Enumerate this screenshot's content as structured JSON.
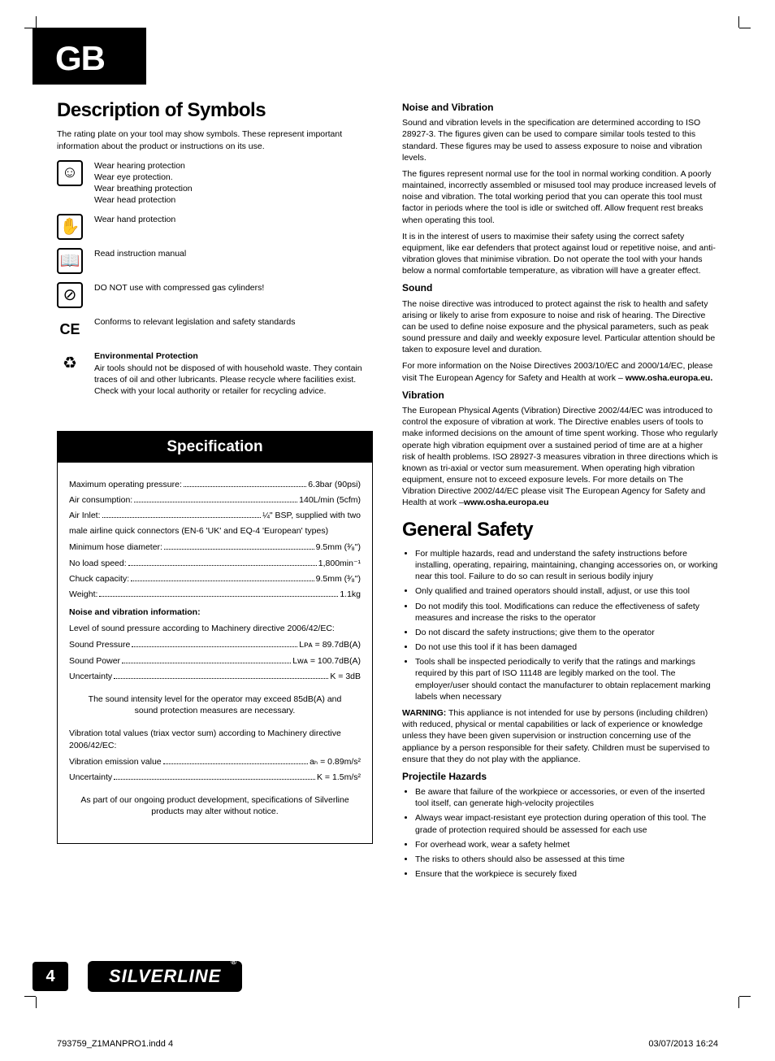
{
  "tab": "GB",
  "page_number": "4",
  "brand_logo_text": "SILVERLINE",
  "file_footer_left": "793759_Z1MANPRO1.indd   4",
  "file_footer_right": "03/07/2013   16:24",
  "colors": {
    "text": "#000000",
    "background": "#ffffff",
    "block_bg": "#000000",
    "block_fg": "#ffffff"
  },
  "left": {
    "title": "Description of Symbols",
    "intro": "The rating plate on your tool may show symbols. These represent important information about the product or instructions on its use.",
    "symbols": [
      {
        "icon": "ppe-icon",
        "glyph": "☺",
        "border": true,
        "lines": [
          "Wear hearing protection",
          "Wear eye protection.",
          "Wear breathing protection",
          "Wear head protection"
        ]
      },
      {
        "icon": "glove-icon",
        "glyph": "✋",
        "border": true,
        "lines": [
          "Wear hand protection"
        ]
      },
      {
        "icon": "manual-icon",
        "glyph": "📖",
        "border": true,
        "lines": [
          "Read instruction manual"
        ]
      },
      {
        "icon": "no-gas-icon",
        "glyph": "⊘",
        "border": true,
        "lines": [
          "DO NOT use with compressed gas cylinders!"
        ]
      },
      {
        "icon": "ce-icon",
        "glyph": "CE",
        "border": false,
        "lines": [
          "Conforms to relevant legislation and safety standards"
        ]
      },
      {
        "icon": "recycle-icon",
        "glyph": "♻",
        "border": false,
        "heading": "Environmental Protection",
        "lines": [
          "Air tools should not be disposed of with household waste. They contain traces of oil and other lubricants. Please recycle where facilities exist. Check with your local authority or retailer for recycling advice."
        ]
      }
    ],
    "spec": {
      "header": "Specification",
      "rows1": [
        {
          "label": "Maximum operating pressure:",
          "value": "6.3bar  (90psi)"
        },
        {
          "label": "Air consumption:",
          "value": "140L/min (5cfm)"
        },
        {
          "label": "Air Inlet:",
          "value": "¼\" BSP, supplied with two"
        }
      ],
      "air_inlet_note": "male airline quick connectors (EN-6 'UK' and EQ-4 'European' types)",
      "rows2": [
        {
          "label": "Minimum hose diameter:",
          "value": "9.5mm (³⁄₈\")"
        },
        {
          "label": "No load speed:",
          "value": "1,800min⁻¹"
        },
        {
          "label": "Chuck capacity:",
          "value": "9.5mm (³⁄₈\")"
        },
        {
          "label": "Weight:",
          "value": "1.1kg"
        }
      ],
      "noise_heading": "Noise and vibration information:",
      "noise_intro": "Level of sound pressure according to Machinery directive 2006/42/EC:",
      "noise_rows": [
        {
          "label": "Sound Pressure",
          "value": "Lᴘᴀ = 89.7dB(A)"
        },
        {
          "label": "Sound Power",
          "value": "Lᴡᴀ = 100.7dB(A)"
        },
        {
          "label": "Uncertainty",
          "value": "K = 3dB"
        }
      ],
      "sound_note": "The sound intensity level for the operator may exceed 85dB(A) and sound protection measures are necessary.",
      "vib_intro": "Vibration total values (triax vector sum) according to Machinery directive 2006/42/EC:",
      "vib_rows": [
        {
          "label": "Vibration emission value",
          "value": "aₕ = 0.89m/s²"
        },
        {
          "label": "Uncertainty",
          "value": "K = 1.5m/s²"
        }
      ],
      "dev_note": "As part of our ongoing product development, specifications of Silverline products may alter without notice."
    }
  },
  "right": {
    "nv_heading": "Noise and Vibration",
    "nv_paras": [
      "Sound and vibration levels in the specification are determined according to ISO 28927-3. The figures given can be used to compare similar tools tested to this standard. These figures may be used to assess exposure to noise and vibration levels.",
      "The figures represent normal use for the tool in normal working condition. A poorly maintained, incorrectly assembled or misused tool may produce increased levels of noise and vibration. The total working period that you can operate this tool must factor in periods where the tool is idle or switched off. Allow frequent rest breaks when operating this tool.",
      "It is in the interest of users to maximise their safety using the correct safety equipment, like ear defenders that protect against loud or repetitive noise, and anti-vibration gloves that minimise vibration. Do not operate the tool with your hands below a normal comfortable temperature, as vibration will have a greater effect."
    ],
    "sound_heading": "Sound",
    "sound_paras": [
      "The noise directive was introduced to protect against the risk to health and safety arising or likely to arise from exposure to noise and risk of hearing. The Directive can be used to define noise exposure and the physical parameters, such as peak sound pressure and daily and weekly exposure level. Particular attention should be taken to exposure level and duration."
    ],
    "sound_more": "For more information on the Noise Directives 2003/10/EC and 2000/14/EC, please visit The European Agency for Safety and Health at work – ",
    "sound_link": "www.osha.europa.eu.",
    "vib_heading": "Vibration",
    "vib_para": "The European Physical Agents (Vibration) Directive 2002/44/EC was introduced to control the exposure of vibration at work. The Directive enables users of tools to make informed decisions on the amount of time spent working. Those who regularly operate high vibration equipment over a sustained period of time are at a higher risk of health problems. ISO 28927-3 measures vibration in three directions which is known as tri-axial or vector sum measurement. When operating high vibration equipment, ensure not to exceed exposure levels. For more details on The Vibration Directive 2002/44/EC please visit The European Agency for Safety and Health at work –",
    "vib_link": "www.osha.europa.eu",
    "gs_title": "General Safety",
    "gs_bullets": [
      "For multiple hazards, read and understand the safety instructions before installing, operating, repairing, maintaining, changing accessories on, or working near this tool. Failure to do so can result in serious bodily injury",
      "Only qualified and trained operators should install, adjust, or use this tool",
      "Do not modify this tool. Modifications can reduce the effectiveness of safety measures and increase the risks to the operator",
      "Do not discard the safety instructions; give them to the operator",
      "Do not use this tool if it has been damaged",
      "Tools shall be inspected periodically to verify that the ratings and markings required by this part of ISO 11148 are legibly marked on the tool. The employer/user should contact the manufacturer to obtain replacement marking labels when necessary"
    ],
    "warning_label": "WARNING:",
    "warning_text": " This appliance is not intended for use by persons (including children) with reduced, physical or mental capabilities or lack of experience or knowledge unless they have been given supervision or instruction concerning use of the appliance by a person responsible for their safety. Children must be supervised to ensure that they do not play with the appliance.",
    "ph_heading": "Projectile Hazards",
    "ph_bullets": [
      "Be aware that failure of the workpiece or accessories, or even of the inserted tool itself, can generate high-velocity projectiles",
      "Always wear impact-resistant eye protection during operation of this tool. The grade of protection required should be assessed for each use",
      "For overhead work, wear a safety helmet",
      "The risks to others should also be assessed at this time",
      "Ensure that the workpiece is securely fixed"
    ]
  }
}
